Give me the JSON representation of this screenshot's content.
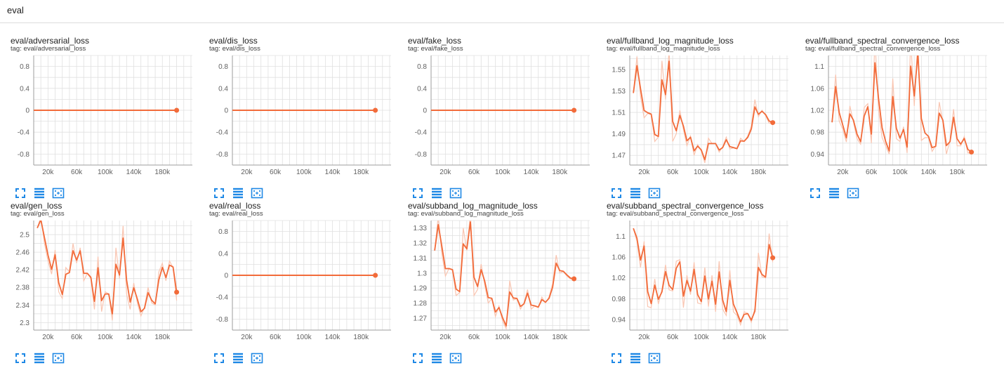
{
  "header": {
    "title": "eval"
  },
  "colors": {
    "line": "#f26b3a",
    "raw": "#f9c5b1",
    "grid": "#e0e0e0",
    "axis": "#9e9e9e",
    "icon": "#1e88e5"
  },
  "toolbar_icons": [
    "fullscreen-icon",
    "toggle-log-scale-icon",
    "fit-domain-icon"
  ],
  "cards": [
    {
      "title": "eval/adversarial_loss",
      "tag": "tag: eval/adversarial_loss"
    },
    {
      "title": "eval/dis_loss",
      "tag": "tag: eval/dis_loss"
    },
    {
      "title": "eval/fake_loss",
      "tag": "tag: eval/fake_loss"
    },
    {
      "title": "eval/fullband_log_magnitude_loss",
      "tag": "tag: eval/fullband_log_magnitude_loss"
    },
    {
      "title": "eval/fullband_spectral_convergence_loss",
      "tag": "tag: eval/fullband_spectral_convergence_loss"
    },
    {
      "title": "eval/gen_loss",
      "tag": "tag: eval/gen_loss"
    },
    {
      "title": "eval/real_loss",
      "tag": "tag: eval/real_loss"
    },
    {
      "title": "eval/subband_log_magnitude_loss",
      "tag": "tag: eval/subband_log_magnitude_loss"
    },
    {
      "title": "eval/subband_spectral_convergence_loss",
      "tag": "tag: eval/subband_spectral_convergence_loss"
    }
  ],
  "chart_data": [
    {
      "type": "line",
      "xticks": [
        20000,
        60000,
        100000,
        140000,
        180000
      ],
      "xtick_labels": [
        "20k",
        "60k",
        "100k",
        "140k",
        "180k"
      ],
      "yticks": [
        -0.8,
        -0.4,
        0,
        0.4,
        0.8
      ],
      "ytick_labels": [
        "-0.8",
        "-0.4",
        "0",
        "0.4",
        "0.8"
      ],
      "xlim": [
        0,
        222000
      ],
      "ylim": [
        -1.0,
        1.0
      ],
      "series": [
        {
          "x": [
            0,
            200000
          ],
          "y": [
            0,
            0
          ]
        }
      ]
    },
    {
      "type": "line",
      "xticks": [
        20000,
        60000,
        100000,
        140000,
        180000
      ],
      "xtick_labels": [
        "20k",
        "60k",
        "100k",
        "140k",
        "180k"
      ],
      "yticks": [
        -0.8,
        -0.4,
        0,
        0.4,
        0.8
      ],
      "ytick_labels": [
        "-0.8",
        "-0.4",
        "0",
        "0.4",
        "0.8"
      ],
      "xlim": [
        0,
        222000
      ],
      "ylim": [
        -1.0,
        1.0
      ],
      "series": [
        {
          "x": [
            0,
            200000
          ],
          "y": [
            0,
            0
          ]
        }
      ]
    },
    {
      "type": "line",
      "xticks": [
        20000,
        60000,
        100000,
        140000,
        180000
      ],
      "xtick_labels": [
        "20k",
        "60k",
        "100k",
        "140k",
        "180k"
      ],
      "yticks": [
        -0.8,
        -0.4,
        0,
        0.4,
        0.8
      ],
      "ytick_labels": [
        "-0.8",
        "-0.4",
        "0",
        "0.4",
        "0.8"
      ],
      "xlim": [
        0,
        222000
      ],
      "ylim": [
        -1.0,
        1.0
      ],
      "series": [
        {
          "x": [
            0,
            200000
          ],
          "y": [
            0,
            0
          ]
        }
      ]
    },
    {
      "type": "line",
      "xticks": [
        20000,
        60000,
        100000,
        140000,
        180000
      ],
      "xtick_labels": [
        "20k",
        "60k",
        "100k",
        "140k",
        "180k"
      ],
      "yticks": [
        1.47,
        1.49,
        1.51,
        1.53,
        1.55
      ],
      "ytick_labels": [
        "1.47",
        "1.49",
        "1.51",
        "1.53",
        "1.55"
      ],
      "xlim": [
        0,
        222000
      ],
      "ylim": [
        1.461,
        1.563
      ],
      "series": [
        {
          "x": [
            5000,
            10000,
            15000,
            20000,
            25000,
            30000,
            35000,
            40000,
            45000,
            50000,
            55000,
            60000,
            65000,
            70000,
            75000,
            80000,
            85000,
            90000,
            95000,
            100000,
            105000,
            110000,
            115000,
            120000,
            125000,
            130000,
            135000,
            140000,
            145000,
            150000,
            155000,
            160000,
            165000,
            170000,
            175000,
            180000,
            185000,
            190000,
            195000,
            200000
          ],
          "y": [
            1.528,
            1.562,
            1.525,
            1.505,
            1.509,
            1.508,
            1.483,
            1.487,
            1.558,
            1.522,
            1.568,
            1.483,
            1.49,
            1.512,
            1.494,
            1.479,
            1.488,
            1.47,
            1.48,
            1.474,
            1.463,
            1.486,
            1.481,
            1.481,
            1.473,
            1.478,
            1.487,
            1.476,
            1.477,
            1.476,
            1.486,
            1.483,
            1.488,
            1.497,
            1.522,
            1.506,
            1.512,
            1.507,
            1.5,
            1.5
          ]
        }
      ]
    },
    {
      "type": "line",
      "xticks": [
        20000,
        60000,
        100000,
        140000,
        180000
      ],
      "xtick_labels": [
        "20k",
        "60k",
        "100k",
        "140k",
        "180k"
      ],
      "yticks": [
        0.94,
        0.98,
        1.02,
        1.06,
        1.1
      ],
      "ytick_labels": [
        "0.94",
        "0.98",
        "1.02",
        "1.06",
        "1.1"
      ],
      "xlim": [
        0,
        222000
      ],
      "ylim": [
        0.92,
        1.12
      ],
      "series": [
        {
          "x": [
            5000,
            10000,
            15000,
            20000,
            25000,
            30000,
            35000,
            40000,
            45000,
            50000,
            55000,
            60000,
            65000,
            70000,
            75000,
            80000,
            85000,
            90000,
            95000,
            100000,
            105000,
            110000,
            115000,
            120000,
            125000,
            130000,
            135000,
            140000,
            145000,
            150000,
            155000,
            160000,
            165000,
            170000,
            175000,
            180000,
            185000,
            190000,
            195000,
            200000
          ],
          "y": [
            0.998,
            1.085,
            1.0,
            0.985,
            0.962,
            1.028,
            0.998,
            0.968,
            0.958,
            1.025,
            1.032,
            0.96,
            1.15,
            1.02,
            0.97,
            0.955,
            0.94,
            1.078,
            0.968,
            0.963,
            0.99,
            0.942,
            1.15,
            1.028,
            1.15,
            0.965,
            0.97,
            0.97,
            0.945,
            0.955,
            1.035,
            0.998,
            0.94,
            0.965,
            1.022,
            0.955,
            0.955,
            0.972,
            0.942,
            0.942
          ]
        }
      ]
    },
    {
      "type": "line",
      "xticks": [
        20000,
        60000,
        100000,
        140000,
        180000
      ],
      "xtick_labels": [
        "20k",
        "60k",
        "100k",
        "140k",
        "180k"
      ],
      "yticks": [
        2.3,
        2.34,
        2.38,
        2.42,
        2.46,
        2.5
      ],
      "ytick_labels": [
        "2.3",
        "2.34",
        "2.38",
        "2.42",
        "2.46",
        "2.5"
      ],
      "xlim": [
        0,
        222000
      ],
      "ylim": [
        2.283,
        2.532
      ],
      "series": [
        {
          "x": [
            5000,
            10000,
            15000,
            20000,
            25000,
            30000,
            35000,
            40000,
            45000,
            50000,
            55000,
            60000,
            65000,
            70000,
            75000,
            80000,
            85000,
            90000,
            95000,
            100000,
            105000,
            110000,
            115000,
            120000,
            125000,
            130000,
            135000,
            140000,
            145000,
            150000,
            155000,
            160000,
            165000,
            170000,
            175000,
            180000,
            185000,
            190000,
            195000,
            200000
          ],
          "y": [
            2.515,
            2.54,
            2.48,
            2.44,
            2.41,
            2.465,
            2.37,
            2.355,
            2.425,
            2.415,
            2.48,
            2.435,
            2.47,
            2.395,
            2.412,
            2.4,
            2.33,
            2.45,
            2.325,
            2.37,
            2.365,
            2.305,
            2.47,
            2.4,
            2.52,
            2.365,
            2.33,
            2.39,
            2.345,
            2.315,
            2.335,
            2.38,
            2.345,
            2.34,
            2.415,
            2.435,
            2.395,
            2.44,
            2.425,
            2.35
          ]
        }
      ]
    },
    {
      "type": "line",
      "xticks": [
        20000,
        60000,
        100000,
        140000,
        180000
      ],
      "xtick_labels": [
        "20k",
        "60k",
        "100k",
        "140k",
        "180k"
      ],
      "yticks": [
        -0.8,
        -0.4,
        0,
        0.4,
        0.8
      ],
      "ytick_labels": [
        "-0.8",
        "-0.4",
        "0",
        "0.4",
        "0.8"
      ],
      "xlim": [
        0,
        222000
      ],
      "ylim": [
        -1.0,
        1.0
      ],
      "series": [
        {
          "x": [
            0,
            200000
          ],
          "y": [
            0,
            0
          ]
        }
      ]
    },
    {
      "type": "line",
      "xticks": [
        20000,
        60000,
        100000,
        140000,
        180000
      ],
      "xtick_labels": [
        "20k",
        "60k",
        "100k",
        "140k",
        "180k"
      ],
      "yticks": [
        1.27,
        1.28,
        1.29,
        1.3,
        1.31,
        1.32,
        1.33
      ],
      "ytick_labels": [
        "1.27",
        "1.28",
        "1.29",
        "1.3",
        "1.31",
        "1.32",
        "1.33"
      ],
      "xlim": [
        0,
        222000
      ],
      "ylim": [
        1.262,
        1.335
      ],
      "series": [
        {
          "x": [
            5000,
            10000,
            15000,
            20000,
            25000,
            30000,
            35000,
            40000,
            45000,
            50000,
            55000,
            60000,
            65000,
            70000,
            75000,
            80000,
            85000,
            90000,
            95000,
            100000,
            105000,
            110000,
            115000,
            120000,
            125000,
            130000,
            135000,
            140000,
            145000,
            150000,
            155000,
            160000,
            165000,
            170000,
            175000,
            180000,
            185000,
            190000,
            195000,
            200000
          ],
          "y": [
            1.315,
            1.338,
            1.313,
            1.298,
            1.303,
            1.302,
            1.285,
            1.287,
            1.33,
            1.315,
            1.34,
            1.285,
            1.289,
            1.306,
            1.292,
            1.28,
            1.283,
            1.271,
            1.278,
            1.268,
            1.263,
            1.295,
            1.282,
            1.283,
            1.276,
            1.28,
            1.289,
            1.276,
            1.278,
            1.277,
            1.284,
            1.28,
            1.284,
            1.293,
            1.312,
            1.3,
            1.301,
            1.298,
            1.296,
            1.296
          ]
        }
      ]
    },
    {
      "type": "line",
      "xticks": [
        20000,
        60000,
        100000,
        140000,
        180000
      ],
      "xtick_labels": [
        "20k",
        "60k",
        "100k",
        "140k",
        "180k"
      ],
      "yticks": [
        0.94,
        0.98,
        1.02,
        1.06,
        1.1
      ],
      "ytick_labels": [
        "0.94",
        "0.98",
        "1.02",
        "1.06",
        "1.1"
      ],
      "xlim": [
        0,
        222000
      ],
      "ylim": [
        0.92,
        1.13
      ],
      "series": [
        {
          "x": [
            5000,
            10000,
            15000,
            20000,
            25000,
            30000,
            35000,
            40000,
            45000,
            50000,
            55000,
            60000,
            65000,
            70000,
            75000,
            80000,
            85000,
            90000,
            95000,
            100000,
            105000,
            110000,
            115000,
            120000,
            125000,
            130000,
            135000,
            140000,
            145000,
            150000,
            155000,
            160000,
            165000,
            170000,
            175000,
            180000,
            185000,
            190000,
            195000,
            200000
          ],
          "y": [
            1.115,
            1.09,
            1.04,
            1.09,
            0.965,
            0.963,
            1.018,
            0.97,
            0.998,
            1.045,
            0.997,
            0.995,
            1.052,
            1.055,
            0.963,
            1.025,
            0.988,
            1.05,
            0.972,
            0.97,
            1.04,
            0.965,
            1.025,
            0.955,
            1.052,
            0.96,
            0.948,
            1.035,
            0.955,
            0.948,
            0.93,
            0.955,
            0.952,
            0.935,
            0.962,
            1.068,
            1.022,
            1.02,
            1.105,
            1.05
          ]
        }
      ]
    }
  ]
}
